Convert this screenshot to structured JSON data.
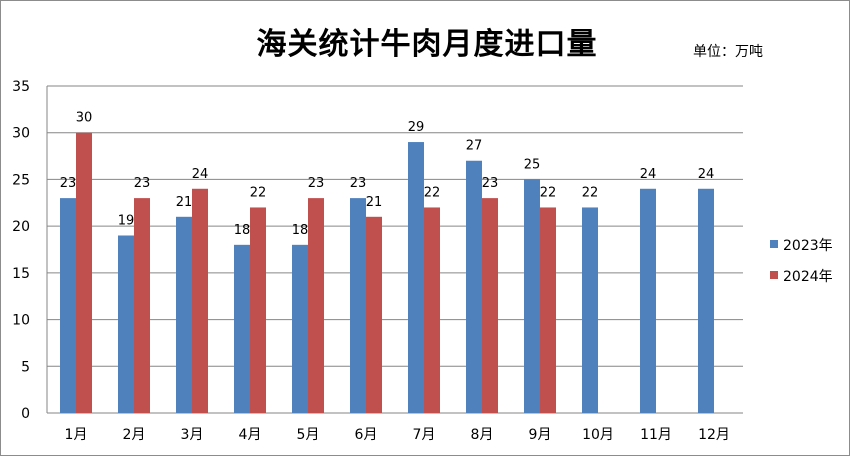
{
  "chart_data": {
    "type": "bar",
    "title": "海关统计牛肉月度进口量",
    "unit_label": "单位：万吨",
    "categories": [
      "1月",
      "2月",
      "3月",
      "4月",
      "5月",
      "6月",
      "7月",
      "8月",
      "9月",
      "10月",
      "11月",
      "12月"
    ],
    "series": [
      {
        "name": "2023年",
        "color": "#4f81bd",
        "values": [
          23,
          19,
          21,
          18,
          18,
          23,
          29,
          27,
          25,
          22,
          24,
          24
        ]
      },
      {
        "name": "2024年",
        "color": "#c0504d",
        "values": [
          30,
          23,
          24,
          22,
          23,
          21,
          22,
          23,
          22,
          null,
          null,
          null
        ]
      }
    ],
    "ylim": [
      0,
      35
    ],
    "yticks": [
      0,
      5,
      10,
      15,
      20,
      25,
      30,
      35
    ],
    "grid": true,
    "legend": "right"
  }
}
